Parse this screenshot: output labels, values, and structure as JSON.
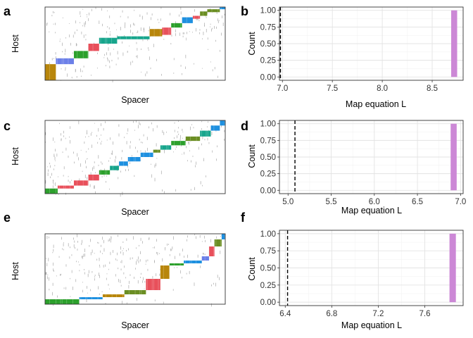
{
  "chart_data": [
    {
      "panel": "a",
      "type": "heatmap",
      "xlabel": "Spacer",
      "ylabel": "Host",
      "blocks": [
        {
          "x": [
            0.0,
            0.06
          ],
          "y": [
            0.0,
            0.22
          ],
          "color": "#B8860B"
        },
        {
          "x": [
            0.06,
            0.16
          ],
          "y": [
            0.22,
            0.3
          ],
          "color": "#6B7FE8"
        },
        {
          "x": [
            0.16,
            0.24
          ],
          "y": [
            0.3,
            0.4
          ],
          "color": "#2CA02C"
        },
        {
          "x": [
            0.24,
            0.3
          ],
          "y": [
            0.4,
            0.5
          ],
          "color": "#E8505B"
        },
        {
          "x": [
            0.3,
            0.4
          ],
          "y": [
            0.5,
            0.58
          ],
          "color": "#17A58C"
        },
        {
          "x": [
            0.4,
            0.58
          ],
          "y": [
            0.56,
            0.6
          ],
          "color": "#17A58C"
        },
        {
          "x": [
            0.58,
            0.65
          ],
          "y": [
            0.6,
            0.7
          ],
          "color": "#B8860B"
        },
        {
          "x": [
            0.65,
            0.7
          ],
          "y": [
            0.62,
            0.72
          ],
          "color": "#E8505B"
        },
        {
          "x": [
            0.7,
            0.76
          ],
          "y": [
            0.72,
            0.78
          ],
          "color": "#2CA02C"
        },
        {
          "x": [
            0.76,
            0.82
          ],
          "y": [
            0.78,
            0.86
          ],
          "color": "#1E90E0"
        },
        {
          "x": [
            0.82,
            0.86
          ],
          "y": [
            0.84,
            0.88
          ],
          "color": "#E8505B"
        },
        {
          "x": [
            0.86,
            0.9
          ],
          "y": [
            0.88,
            0.94
          ],
          "color": "#6B8E23"
        },
        {
          "x": [
            0.9,
            0.97
          ],
          "y": [
            0.93,
            0.97
          ],
          "color": "#6B8E23"
        },
        {
          "x": [
            0.97,
            1.0
          ],
          "y": [
            0.97,
            1.0
          ],
          "color": "#1E90E0"
        }
      ]
    },
    {
      "panel": "b",
      "type": "bar",
      "xlabel": "Map equation L",
      "ylabel": "Count",
      "xlim": [
        6.97,
        8.81
      ],
      "ylim": [
        -0.05,
        1.05
      ],
      "xticks": [
        "7.0",
        "7.5",
        "8.0",
        "8.5"
      ],
      "xtick_values": [
        7.0,
        7.5,
        8.0,
        8.5
      ],
      "yticks": [
        "0.00",
        "0.25",
        "0.50",
        "0.75",
        "1.00"
      ],
      "ytick_values": [
        0,
        0.25,
        0.5,
        0.75,
        1.0
      ],
      "bars": [
        {
          "x": 8.72,
          "width": 0.06,
          "count": 1
        }
      ],
      "reference_line": 6.98,
      "bar_color": "#CC88D6",
      "line_style": "dashed",
      "grid": true
    },
    {
      "panel": "c",
      "type": "heatmap",
      "xlabel": "Spacer",
      "ylabel": "Host",
      "blocks": [
        {
          "x": [
            0.0,
            0.07
          ],
          "y": [
            0.0,
            0.07
          ],
          "color": "#2CA02C"
        },
        {
          "x": [
            0.07,
            0.16
          ],
          "y": [
            0.07,
            0.11
          ],
          "color": "#E8505B"
        },
        {
          "x": [
            0.16,
            0.24
          ],
          "y": [
            0.11,
            0.18
          ],
          "color": "#E8505B"
        },
        {
          "x": [
            0.24,
            0.3
          ],
          "y": [
            0.18,
            0.26
          ],
          "color": "#E8505B"
        },
        {
          "x": [
            0.3,
            0.36
          ],
          "y": [
            0.26,
            0.32
          ],
          "color": "#2CA02C"
        },
        {
          "x": [
            0.36,
            0.41
          ],
          "y": [
            0.32,
            0.38
          ],
          "color": "#17A58C"
        },
        {
          "x": [
            0.41,
            0.46
          ],
          "y": [
            0.38,
            0.44
          ],
          "color": "#1E90E0"
        },
        {
          "x": [
            0.46,
            0.53
          ],
          "y": [
            0.44,
            0.5
          ],
          "color": "#1E90E0"
        },
        {
          "x": [
            0.53,
            0.6
          ],
          "y": [
            0.5,
            0.56
          ],
          "color": "#1E90E0"
        },
        {
          "x": [
            0.6,
            0.64
          ],
          "y": [
            0.56,
            0.6
          ],
          "color": "#6B8E23"
        },
        {
          "x": [
            0.64,
            0.7
          ],
          "y": [
            0.6,
            0.66
          ],
          "color": "#17A58C"
        },
        {
          "x": [
            0.7,
            0.78
          ],
          "y": [
            0.66,
            0.72
          ],
          "color": "#2CA02C"
        },
        {
          "x": [
            0.78,
            0.86
          ],
          "y": [
            0.72,
            0.78
          ],
          "color": "#6B8E23"
        },
        {
          "x": [
            0.86,
            0.92
          ],
          "y": [
            0.78,
            0.86
          ],
          "color": "#17A58C"
        },
        {
          "x": [
            0.92,
            0.97
          ],
          "y": [
            0.86,
            0.93
          ],
          "color": "#1E90E0"
        },
        {
          "x": [
            0.97,
            1.0
          ],
          "y": [
            0.93,
            1.0
          ],
          "color": "#1E90E0"
        }
      ]
    },
    {
      "panel": "d",
      "type": "bar",
      "xlabel": "Map equation L",
      "ylabel": "Count",
      "xlim": [
        4.9,
        7.03
      ],
      "ylim": [
        -0.05,
        1.05
      ],
      "xticks": [
        "5.0",
        "5.5",
        "6.0",
        "6.5",
        "7.0"
      ],
      "xtick_values": [
        5.0,
        5.5,
        6.0,
        6.5,
        7.0
      ],
      "yticks": [
        "0.00",
        "0.25",
        "0.50",
        "0.75",
        "1.00"
      ],
      "ytick_values": [
        0,
        0.25,
        0.5,
        0.75,
        1.0
      ],
      "bars": [
        {
          "x": 6.92,
          "width": 0.07,
          "count": 1
        }
      ],
      "reference_line": 5.08,
      "bar_color": "#CC88D6",
      "line_style": "dashed",
      "grid": true
    },
    {
      "panel": "e",
      "type": "heatmap",
      "xlabel": "Spacer",
      "ylabel": "Host",
      "blocks": [
        {
          "x": [
            0.0,
            0.19
          ],
          "y": [
            0.0,
            0.07
          ],
          "color": "#2CA02C"
        },
        {
          "x": [
            0.19,
            0.32
          ],
          "y": [
            0.07,
            0.1
          ],
          "color": "#1E90E0"
        },
        {
          "x": [
            0.32,
            0.44
          ],
          "y": [
            0.1,
            0.14
          ],
          "color": "#B8860B"
        },
        {
          "x": [
            0.44,
            0.56
          ],
          "y": [
            0.14,
            0.2
          ],
          "color": "#6B8E23"
        },
        {
          "x": [
            0.56,
            0.64
          ],
          "y": [
            0.2,
            0.36
          ],
          "color": "#E8505B"
        },
        {
          "x": [
            0.64,
            0.69
          ],
          "y": [
            0.36,
            0.55
          ],
          "color": "#B8860B"
        },
        {
          "x": [
            0.69,
            0.77
          ],
          "y": [
            0.55,
            0.58
          ],
          "color": "#2CA02C"
        },
        {
          "x": [
            0.77,
            0.87
          ],
          "y": [
            0.58,
            0.62
          ],
          "color": "#1E90E0"
        },
        {
          "x": [
            0.87,
            0.91
          ],
          "y": [
            0.62,
            0.68
          ],
          "color": "#6B7FE8"
        },
        {
          "x": [
            0.91,
            0.94
          ],
          "y": [
            0.68,
            0.82
          ],
          "color": "#E8505B"
        },
        {
          "x": [
            0.94,
            0.98
          ],
          "y": [
            0.82,
            0.92
          ],
          "color": "#6B8E23"
        },
        {
          "x": [
            0.98,
            1.0
          ],
          "y": [
            0.92,
            1.0
          ],
          "color": "#1E90E0"
        }
      ]
    },
    {
      "panel": "f",
      "type": "bar",
      "xlabel": "Map equation L",
      "ylabel": "Count",
      "xlim": [
        6.35,
        7.93
      ],
      "ylim": [
        -0.05,
        1.05
      ],
      "xticks": [
        "6.4",
        "6.8",
        "7.2",
        "7.6"
      ],
      "xtick_values": [
        6.4,
        6.8,
        7.2,
        7.6
      ],
      "yticks": [
        "0.00",
        "0.25",
        "0.50",
        "0.75",
        "1.00"
      ],
      "ytick_values": [
        0,
        0.25,
        0.5,
        0.75,
        1.0
      ],
      "bars": [
        {
          "x": 7.84,
          "width": 0.055,
          "count": 1
        }
      ],
      "reference_line": 6.42,
      "bar_color": "#CC88D6",
      "line_style": "dashed",
      "grid": true
    }
  ]
}
